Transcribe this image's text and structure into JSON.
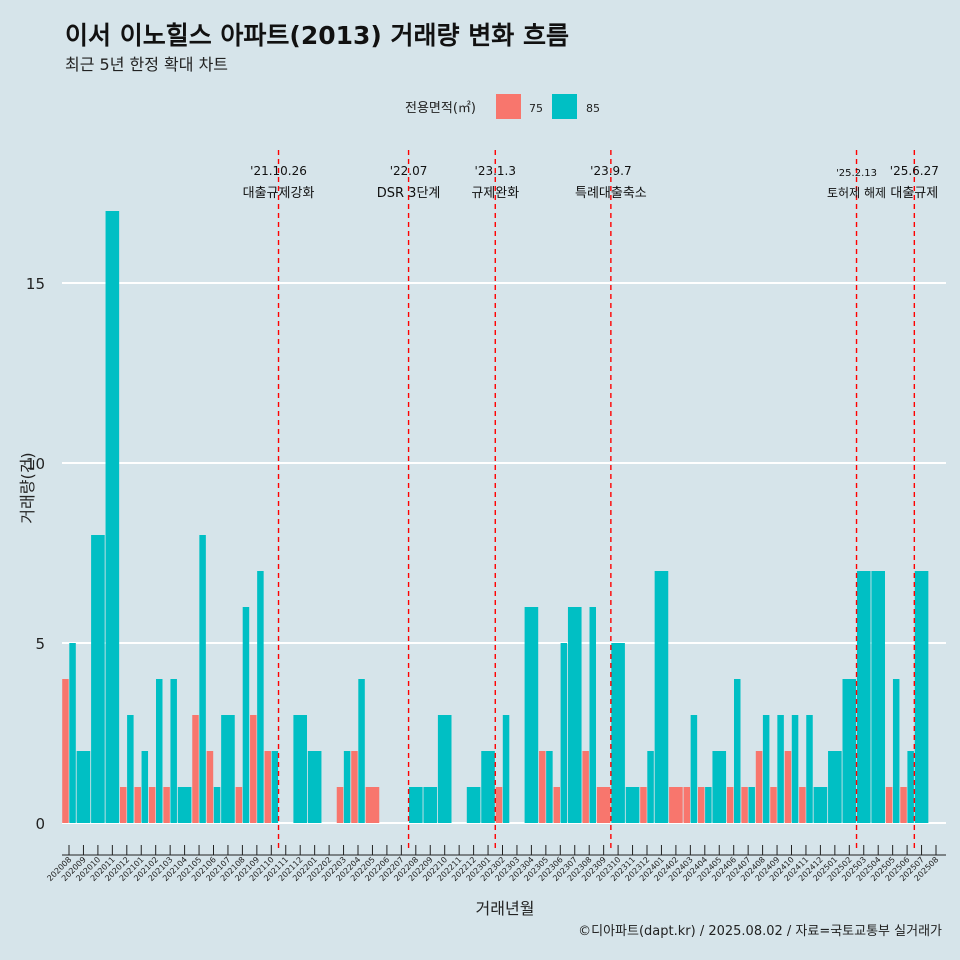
{
  "chart_data": {
    "type": "bar",
    "title": "이서 이노힐스 아파트(2013) 거래량 변화 흐름",
    "subtitle": "최근 5년 한정 확대 차트",
    "xlabel": "거래년월",
    "ylabel": "거래량(건)",
    "ylim": [
      -0.9,
      17.9
    ],
    "yticks": [
      0,
      5,
      10,
      15
    ],
    "grid": true,
    "legend": {
      "title": "전용면적(㎡)",
      "position": "top",
      "items": [
        {
          "label": "75",
          "color": "#f8766d"
        },
        {
          "label": "85",
          "color": "#00bfc4"
        }
      ]
    },
    "categories": [
      "202008",
      "202009",
      "202010",
      "202011",
      "202012",
      "202101",
      "202102",
      "202103",
      "202104",
      "202105",
      "202106",
      "202107",
      "202108",
      "202109",
      "202110",
      "202111",
      "202112",
      "202201",
      "202202",
      "202203",
      "202204",
      "202205",
      "202206",
      "202207",
      "202208",
      "202209",
      "202210",
      "202211",
      "202212",
      "202301",
      "202302",
      "202303",
      "202304",
      "202305",
      "202306",
      "202307",
      "202308",
      "202309",
      "202310",
      "202311",
      "202312",
      "202401",
      "202402",
      "202403",
      "202404",
      "202405",
      "202406",
      "202407",
      "202408",
      "202409",
      "202410",
      "202411",
      "202412",
      "202501",
      "202502",
      "202503",
      "202504",
      "202505",
      "202506",
      "202507",
      "202508"
    ],
    "series": [
      {
        "name": "75",
        "color": "#f8766d",
        "values": [
          4,
          0,
          0,
          0,
          1,
          1,
          1,
          1,
          0,
          3,
          2,
          0,
          1,
          3,
          2,
          0,
          0,
          0,
          0,
          1,
          2,
          1,
          0,
          0,
          0,
          0,
          0,
          0,
          0,
          0,
          1,
          0,
          0,
          2,
          1,
          0,
          2,
          1,
          0,
          0,
          1,
          0,
          1,
          1,
          1,
          0,
          1,
          1,
          2,
          1,
          2,
          1,
          0,
          0,
          0,
          0,
          0,
          1,
          1,
          0,
          0
        ]
      },
      {
        "name": "85",
        "color": "#00bfc4",
        "values": [
          5,
          2,
          8,
          17,
          3,
          2,
          4,
          4,
          1,
          8,
          1,
          3,
          6,
          7,
          2,
          0,
          3,
          2,
          0,
          2,
          4,
          0,
          0,
          0,
          1,
          1,
          3,
          0,
          1,
          2,
          3,
          0,
          6,
          2,
          5,
          6,
          6,
          0,
          5,
          1,
          2,
          7,
          0,
          3,
          1,
          2,
          4,
          1,
          3,
          3,
          3,
          3,
          1,
          2,
          4,
          7,
          7,
          4,
          2,
          7,
          0
        ]
      }
    ],
    "annotations": [
      {
        "after": "202110",
        "date": "'21.10.26",
        "text": "대출규제강화",
        "small": false
      },
      {
        "after": "202207",
        "date": "'22.07",
        "text": "DSR 3단계",
        "small": false
      },
      {
        "after": "202301",
        "date": "'23.1.3",
        "text": "규제완화",
        "small": false
      },
      {
        "after": "202309",
        "date": "'23.9.7",
        "text": "특례대출축소",
        "small": false
      },
      {
        "after": "202502",
        "date": "'25.2.13",
        "text": "토허제 해제",
        "small": true
      },
      {
        "after": "202506",
        "date": "'25.6.27",
        "text": "대출규제",
        "small": false
      }
    ]
  },
  "caption": "©디아파트(dapt.kr) / 2025.08.02 / 자료=국토교통부 실거래가"
}
